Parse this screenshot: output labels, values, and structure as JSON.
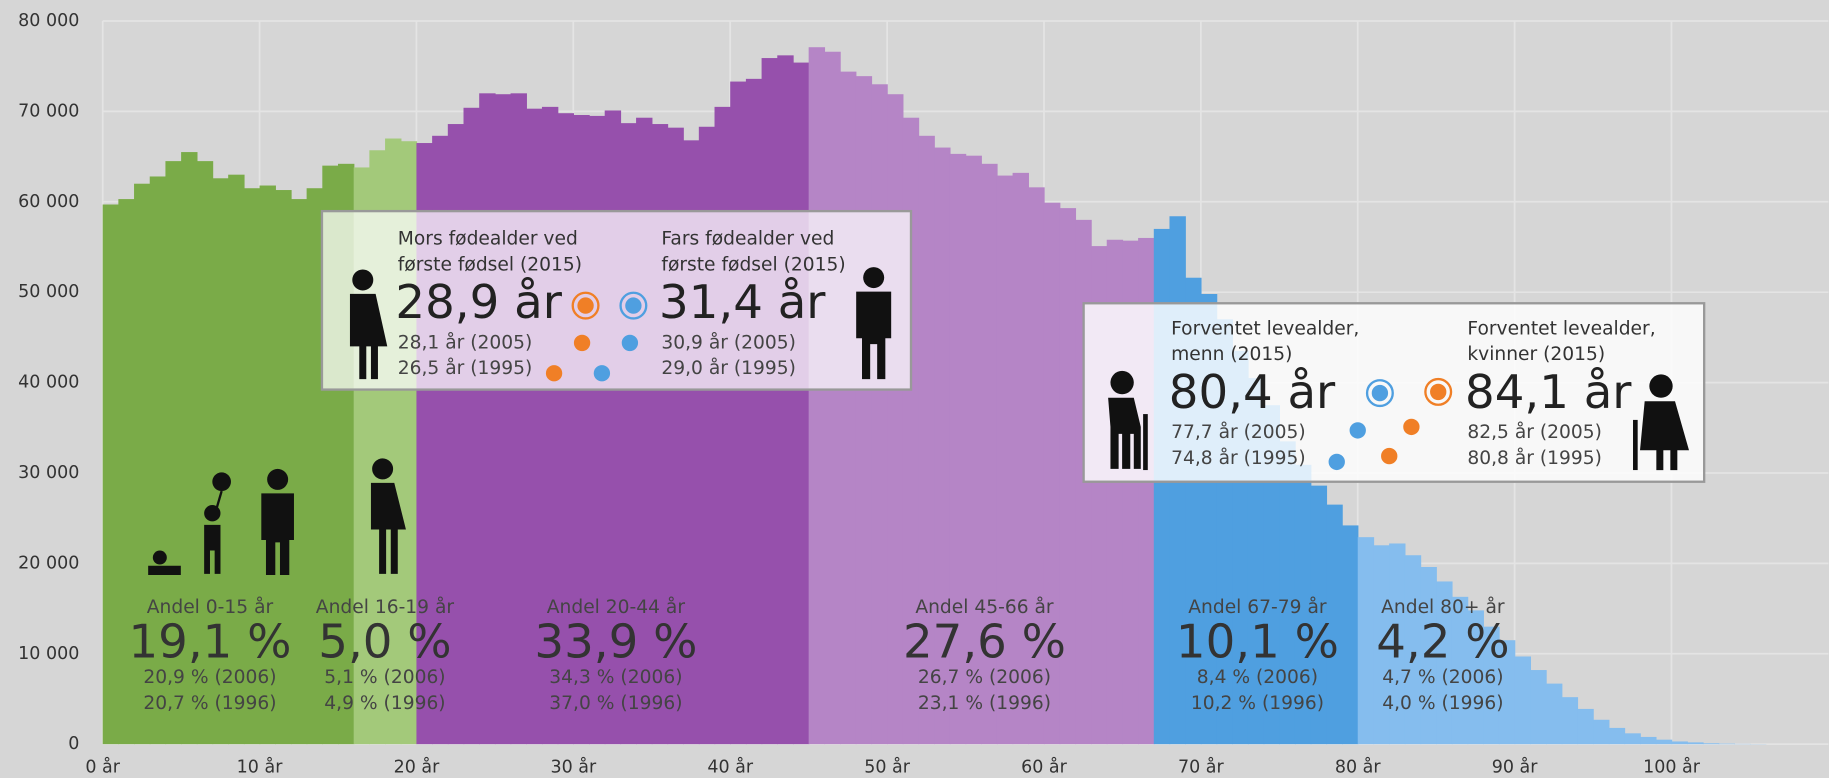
{
  "chart_data": {
    "type": "histogram",
    "xlim": [
      0,
      110
    ],
    "ylim": [
      0,
      80000
    ],
    "xticks": [
      {
        "value": 0,
        "label": "0 år"
      },
      {
        "value": 10,
        "label": "10 år"
      },
      {
        "value": 20,
        "label": "20 år"
      },
      {
        "value": 30,
        "label": "30 år"
      },
      {
        "value": 40,
        "label": "40 år"
      },
      {
        "value": 50,
        "label": "50 år"
      },
      {
        "value": 60,
        "label": "60 år"
      },
      {
        "value": 70,
        "label": "70 år"
      },
      {
        "value": 80,
        "label": "80 år"
      },
      {
        "value": 90,
        "label": "90 år"
      },
      {
        "value": 100,
        "label": "100 år"
      }
    ],
    "yticks": [
      0,
      {
        "value": 10000,
        "label": "10 000"
      },
      {
        "value": 20000,
        "label": "20 000"
      },
      {
        "value": 30000,
        "label": "30 000"
      },
      {
        "value": 40000,
        "label": "40 000"
      },
      {
        "value": 50000,
        "label": "50 000"
      },
      {
        "value": 60000,
        "label": "60 000"
      },
      {
        "value": 70000,
        "label": "70 000"
      },
      {
        "value": 80000,
        "label": "80 000"
      }
    ],
    "grid": true,
    "series": [
      {
        "name": "Andel 0-15 år",
        "color": "#7aab48",
        "share": "19,1 %",
        "history": [
          "20,9 % (2006)",
          "20,7 % (1996)"
        ],
        "bins": [
          0,
          1,
          2,
          3,
          4,
          5,
          6,
          7,
          8,
          9,
          10,
          11,
          12,
          13,
          14,
          15,
          16
        ],
        "values": [
          59700,
          60300,
          62000,
          62800,
          64500,
          65500,
          64500,
          62600,
          63000,
          61500,
          61800,
          61300,
          60300,
          61500,
          64000,
          64200
        ]
      },
      {
        "name": "Andel 16-19 år",
        "color": "#a3c97a",
        "share": "5,0 %",
        "history": [
          "5,1 % (2006)",
          "4,9 % (1996)"
        ],
        "bins": [
          16,
          17,
          18,
          19,
          20
        ],
        "values": [
          63800,
          65700,
          67000,
          66700
        ]
      },
      {
        "name": "Andel 20-44 år",
        "color": "#9650ac",
        "share": "33,9 %",
        "history": [
          "34,3 % (2006)",
          "37,0 % (1996)"
        ],
        "bins": [
          20,
          21,
          22,
          23,
          24,
          25,
          26,
          27,
          28,
          29,
          30,
          31,
          32,
          33,
          34,
          35,
          36,
          37,
          38,
          39,
          40,
          41,
          42,
          43,
          44,
          45
        ],
        "values": [
          66500,
          67300,
          68600,
          70400,
          72000,
          71900,
          72000,
          70300,
          70500,
          69800,
          69600,
          69500,
          70100,
          68700,
          69300,
          68600,
          68200,
          66800,
          68300,
          70500,
          73300,
          73600,
          75900,
          76200,
          75400
        ]
      },
      {
        "name": "Andel 45-66 år",
        "color": "#b585c6",
        "share": "27,6 %",
        "history": [
          "26,7 % (2006)",
          "23,1 % (1996)"
        ],
        "bins": [
          45,
          46,
          47,
          48,
          49,
          50,
          51,
          52,
          53,
          54,
          55,
          56,
          57,
          58,
          59,
          60,
          61,
          62,
          63,
          64,
          65,
          66,
          67
        ],
        "values": [
          77100,
          76600,
          74400,
          73900,
          73000,
          71900,
          69300,
          67300,
          66000,
          65300,
          65100,
          64200,
          62900,
          63200,
          61600,
          59900,
          59300,
          58000,
          55100,
          55800,
          55700,
          56000
        ]
      },
      {
        "name": "Andel 67-79 år",
        "color": "#4f9fe0",
        "share": "10,1 %",
        "history": [
          "8,4 % (2006)",
          "10,2 % (1996)"
        ],
        "bins": [
          67,
          68,
          69,
          70,
          71,
          72,
          73,
          74,
          75,
          76,
          77,
          78,
          79,
          80
        ],
        "values": [
          57000,
          58400,
          51600,
          49800,
          47000,
          43500,
          40500,
          37500,
          33500,
          30900,
          28600,
          26500,
          24200
        ]
      },
      {
        "name": "Andel 80+ år",
        "color": "#85bdee",
        "share": "4,2 %",
        "history": [
          "4,7 % (2006)",
          "4,0 % (1996)"
        ],
        "bins": [
          80,
          81,
          82,
          83,
          84,
          85,
          86,
          87,
          88,
          89,
          90,
          91,
          92,
          93,
          94,
          95,
          96,
          97,
          98,
          99,
          100,
          101,
          102,
          103,
          104,
          105,
          106
        ],
        "values": [
          22900,
          22000,
          22200,
          20900,
          19600,
          18000,
          16300,
          14800,
          13000,
          11500,
          9700,
          8200,
          6700,
          5200,
          3900,
          2700,
          1800,
          1200,
          800,
          500,
          300,
          200,
          100,
          60,
          30,
          20
        ]
      }
    ],
    "boxes": [
      {
        "left": {
          "title": [
            "Mors fødealder ved",
            "første fødsel (2015)"
          ],
          "value": "28,9 år",
          "history": [
            "28,1 år (2005)",
            "26,5 år (1995)"
          ]
        },
        "right": {
          "title": [
            "Fars fødealder ved",
            "første fødsel (2015)"
          ],
          "value": "31,4 år",
          "history": [
            "30,9 år (2005)",
            "29,0 år (1995)"
          ]
        }
      },
      {
        "left": {
          "title": [
            "Forventet levealder,",
            "menn (2015)"
          ],
          "value": "80,4 år",
          "history": [
            "77,7 år (2005)",
            "74,8 år (1995)"
          ]
        },
        "right": {
          "title": [
            "Forventet levealder,",
            "kvinner (2015)"
          ],
          "value": "84,1 år",
          "history": [
            "82,5 år (2005)",
            "80,8 år (1995)"
          ]
        }
      }
    ]
  }
}
